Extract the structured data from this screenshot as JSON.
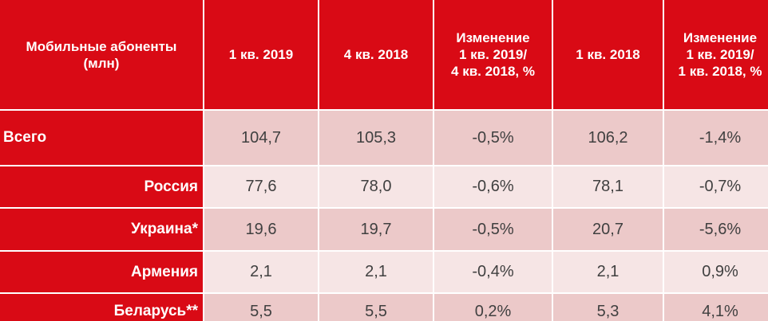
{
  "table": {
    "header": [
      "Мобильные абоненты\n(млн)",
      "1 кв. 2019",
      "4 кв. 2018",
      "Изменение\n1 кв. 2019/\n4 кв. 2018, %",
      "1 кв. 2018",
      "Изменение\n1 кв. 2019/\n1 кв. 2018, %"
    ],
    "rows": [
      {
        "label": "Всего",
        "values": [
          "104,7",
          "105,3",
          "-0,5%",
          "106,2",
          "-1,4%"
        ]
      },
      {
        "label": "Россия",
        "values": [
          "77,6",
          "78,0",
          "-0,6%",
          "78,1",
          "-0,7%"
        ]
      },
      {
        "label": "Украина*",
        "values": [
          "19,6",
          "19,7",
          "-0,5%",
          "20,7",
          "-5,6%"
        ]
      },
      {
        "label": "Армения",
        "values": [
          "2,1",
          "2,1",
          "-0,4%",
          "2,1",
          "0,9%"
        ]
      },
      {
        "label": "Беларусь**",
        "values": [
          "5,5",
          "5,5",
          "0,2%",
          "5,3",
          "4,1%"
        ]
      }
    ]
  },
  "colors": {
    "header_bg": "#d90a15",
    "row_dark_bg": "#ecc9c9",
    "row_light_bg": "#f6e5e5",
    "value_text": "#404040"
  }
}
